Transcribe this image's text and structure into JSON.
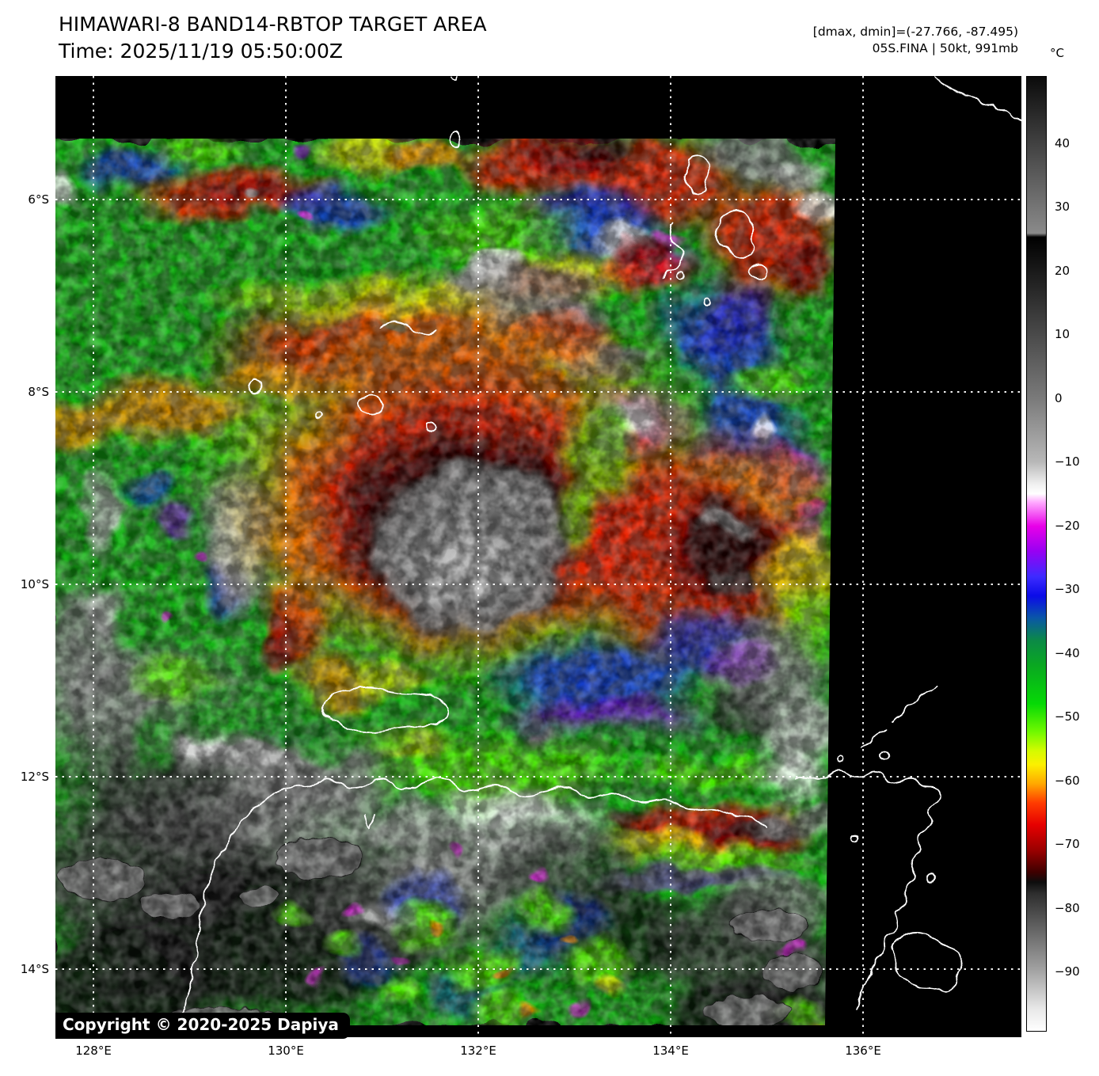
{
  "header": {
    "title": "HIMAWARI-8 BAND14-RBTOP TARGET AREA",
    "time_line": "Time: 2025/11/19 05:50:00Z",
    "dmax_dmin_line": "[dmax, dmin]=(-27.766, -87.495)",
    "storm_line": "05S.FINA | 50kt, 991mb"
  },
  "colorbar": {
    "unit": "°C",
    "tick_labels": [
      "40",
      "30",
      "20",
      "10",
      "0",
      "−10",
      "−20",
      "−30",
      "−40",
      "−50",
      "−60",
      "−70",
      "−80",
      "−90"
    ]
  },
  "axes": {
    "lat_tick_labels": [
      "6°S",
      "8°S",
      "10°S",
      "12°S",
      "14°S"
    ],
    "lon_tick_labels": [
      "128°E",
      "130°E",
      "132°E",
      "134°E",
      "136°E"
    ]
  },
  "overlay": {
    "copyright": "Copyright © 2020-2025 Dapiya"
  },
  "colors": {
    "background": "#ffffff",
    "map_void": "#000000",
    "gridline": "#ffffff",
    "coastline": "#ffffff",
    "enh_green": "#12b412",
    "enh_bright_green": "#58f800",
    "enh_yellow": "#f8ee00",
    "enh_orange": "#ff9100",
    "enh_red": "#f01800",
    "enh_dark_red": "#8c0000",
    "enh_blue": "#1430f0",
    "enh_purple": "#8a00e8",
    "enh_magenta": "#e820e8",
    "overcast_gray": "#8e8e8e"
  }
}
